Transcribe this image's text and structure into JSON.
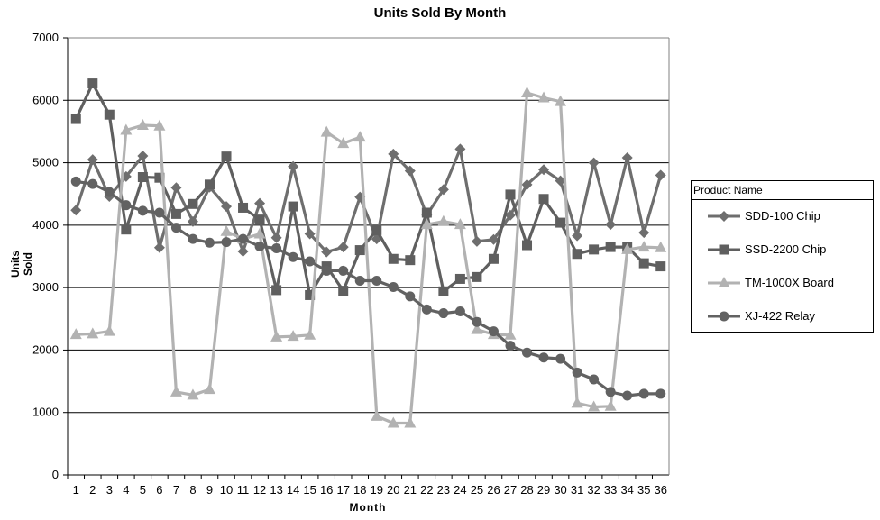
{
  "chart_data": {
    "type": "line",
    "title": "Units Sold By Month",
    "xlabel": "Month",
    "ylabel": "Units Sold",
    "ylim": [
      0,
      7000
    ],
    "yticks": [
      0,
      1000,
      2000,
      3000,
      4000,
      5000,
      6000,
      7000
    ],
    "categories": [
      "1",
      "2",
      "3",
      "4",
      "5",
      "6",
      "7",
      "8",
      "9",
      "10",
      "11",
      "12",
      "13",
      "14",
      "15",
      "16",
      "17",
      "18",
      "19",
      "20",
      "21",
      "22",
      "23",
      "24",
      "25",
      "26",
      "27",
      "28",
      "29",
      "30",
      "31",
      "32",
      "33",
      "34",
      "35",
      "36"
    ],
    "grid": true,
    "legend": {
      "title": "Product Name",
      "position": "right"
    },
    "series": [
      {
        "name": "SDD-100 Chip",
        "marker": "diamond",
        "color": "#6e6e6e",
        "values": [
          4240,
          5050,
          4460,
          4780,
          5110,
          3640,
          4600,
          4060,
          4610,
          4300,
          3580,
          4350,
          3800,
          4940,
          3860,
          3570,
          3650,
          4450,
          3780,
          5140,
          4870,
          4160,
          4570,
          5220,
          3740,
          3770,
          4160,
          4650,
          4890,
          4710,
          3830,
          5000,
          4010,
          5080,
          3880,
          4800
        ]
      },
      {
        "name": "SSD-2200 Chip",
        "marker": "square",
        "color": "#5f5f5f",
        "values": [
          5700,
          6270,
          5770,
          3930,
          4770,
          4760,
          4180,
          4340,
          4650,
          5100,
          4280,
          4090,
          2960,
          4300,
          2880,
          3340,
          2950,
          3600,
          3920,
          3460,
          3440,
          4200,
          2940,
          3140,
          3170,
          3460,
          4490,
          3680,
          4420,
          4040,
          3540,
          3610,
          3650,
          3650,
          3390,
          3340
        ]
      },
      {
        "name": "TM-1000X Board",
        "marker": "triangle",
        "color": "#b2b2b2",
        "values": [
          2250,
          2260,
          2300,
          5520,
          5600,
          5590,
          1330,
          1280,
          1370,
          3900,
          3780,
          3860,
          2210,
          2220,
          2240,
          5490,
          5310,
          5410,
          940,
          830,
          830,
          4010,
          4060,
          4010,
          2330,
          2250,
          2240,
          6120,
          6040,
          5980,
          1150,
          1090,
          1100,
          3610,
          3650,
          3640
        ]
      },
      {
        "name": "XJ-422 Relay",
        "marker": "circle",
        "color": "#626262",
        "values": [
          4700,
          4660,
          4530,
          4320,
          4230,
          4200,
          3960,
          3780,
          3720,
          3730,
          3780,
          3660,
          3630,
          3490,
          3420,
          3270,
          3270,
          3110,
          3110,
          3010,
          2860,
          2650,
          2590,
          2620,
          2450,
          2300,
          2070,
          1960,
          1880,
          1860,
          1640,
          1530,
          1330,
          1270,
          1300,
          1300
        ]
      }
    ]
  }
}
